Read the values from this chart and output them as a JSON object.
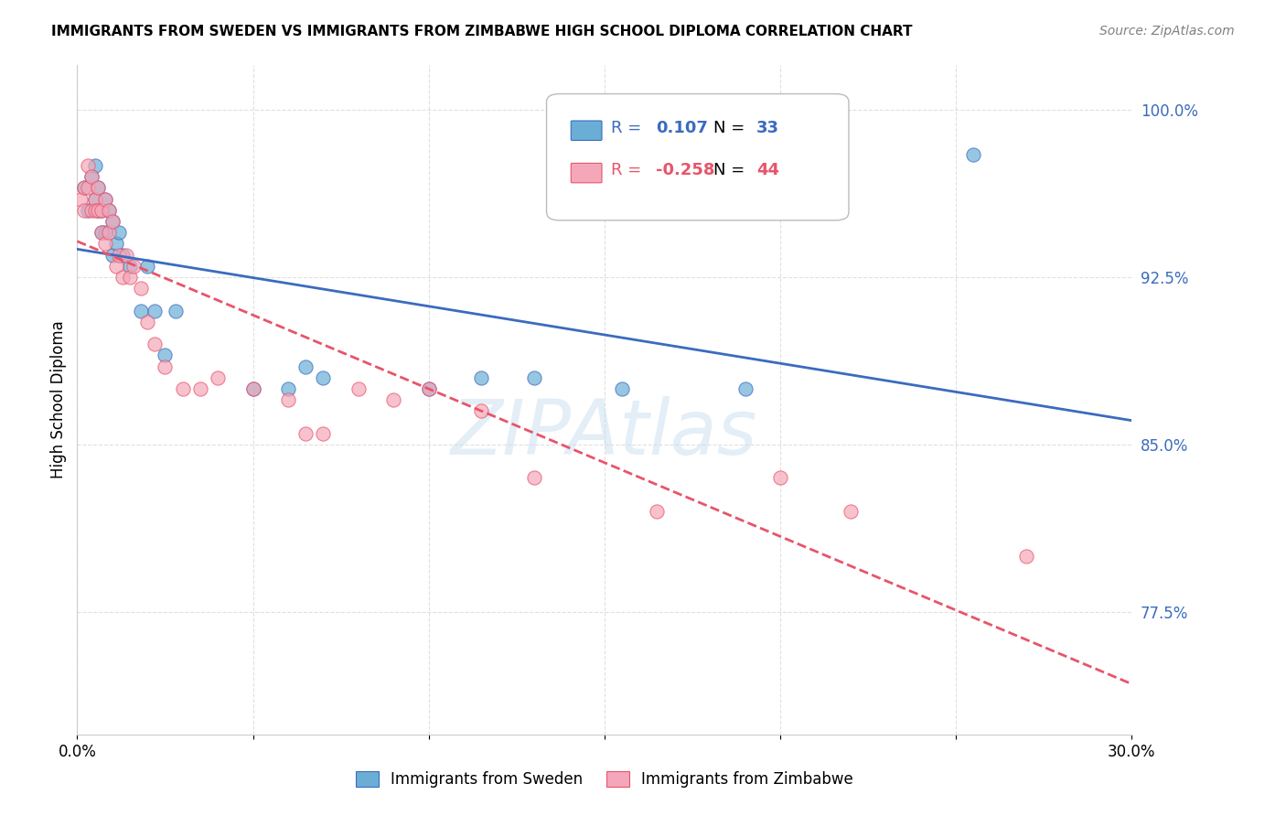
{
  "title": "IMMIGRANTS FROM SWEDEN VS IMMIGRANTS FROM ZIMBABWE HIGH SCHOOL DIPLOMA CORRELATION CHART",
  "source": "Source: ZipAtlas.com",
  "ylabel": "High School Diploma",
  "xlabel": "",
  "xlim": [
    0.0,
    0.3
  ],
  "ylim": [
    0.72,
    1.02
  ],
  "yticks": [
    0.775,
    0.85,
    0.925,
    1.0
  ],
  "ytick_labels": [
    "77.5%",
    "85.0%",
    "92.5%",
    "100.0%"
  ],
  "xticks": [
    0.0,
    0.05,
    0.1,
    0.15,
    0.2,
    0.25,
    0.3
  ],
  "xtick_labels": [
    "0.0%",
    "",
    "",
    "",
    "",
    "",
    "30.0%"
  ],
  "legend_sweden_R": "0.107",
  "legend_sweden_N": "33",
  "legend_zimbabwe_R": "-0.258",
  "legend_zimbabwe_N": "44",
  "sweden_color": "#6aaed6",
  "zimbabwe_color": "#f4a7b9",
  "trend_sweden_color": "#3b6bbf",
  "trend_zimbabwe_color": "#e8546a",
  "watermark": "ZIPAtlas",
  "sweden_x": [
    0.002,
    0.003,
    0.004,
    0.005,
    0.005,
    0.006,
    0.006,
    0.007,
    0.007,
    0.008,
    0.008,
    0.009,
    0.01,
    0.01,
    0.011,
    0.012,
    0.013,
    0.015,
    0.018,
    0.02,
    0.022,
    0.025,
    0.028,
    0.05,
    0.06,
    0.065,
    0.07,
    0.1,
    0.115,
    0.13,
    0.155,
    0.19,
    0.255
  ],
  "sweden_y": [
    0.965,
    0.955,
    0.97,
    0.975,
    0.96,
    0.965,
    0.955,
    0.955,
    0.945,
    0.96,
    0.945,
    0.955,
    0.95,
    0.935,
    0.94,
    0.945,
    0.935,
    0.93,
    0.91,
    0.93,
    0.91,
    0.89,
    0.91,
    0.875,
    0.875,
    0.885,
    0.88,
    0.875,
    0.88,
    0.88,
    0.875,
    0.875,
    0.98
  ],
  "zimbabwe_x": [
    0.001,
    0.002,
    0.002,
    0.003,
    0.003,
    0.004,
    0.004,
    0.005,
    0.005,
    0.006,
    0.006,
    0.007,
    0.007,
    0.008,
    0.008,
    0.009,
    0.009,
    0.01,
    0.011,
    0.012,
    0.013,
    0.014,
    0.015,
    0.016,
    0.018,
    0.02,
    0.022,
    0.025,
    0.03,
    0.035,
    0.04,
    0.05,
    0.06,
    0.065,
    0.07,
    0.08,
    0.09,
    0.1,
    0.115,
    0.13,
    0.165,
    0.2,
    0.22,
    0.27
  ],
  "zimbabwe_y": [
    0.96,
    0.965,
    0.955,
    0.975,
    0.965,
    0.97,
    0.955,
    0.96,
    0.955,
    0.965,
    0.955,
    0.955,
    0.945,
    0.96,
    0.94,
    0.955,
    0.945,
    0.95,
    0.93,
    0.935,
    0.925,
    0.935,
    0.925,
    0.93,
    0.92,
    0.905,
    0.895,
    0.885,
    0.875,
    0.875,
    0.88,
    0.875,
    0.87,
    0.855,
    0.855,
    0.875,
    0.87,
    0.875,
    0.865,
    0.835,
    0.82,
    0.835,
    0.82,
    0.8
  ],
  "background_color": "#ffffff",
  "grid_color": "#cccccc"
}
